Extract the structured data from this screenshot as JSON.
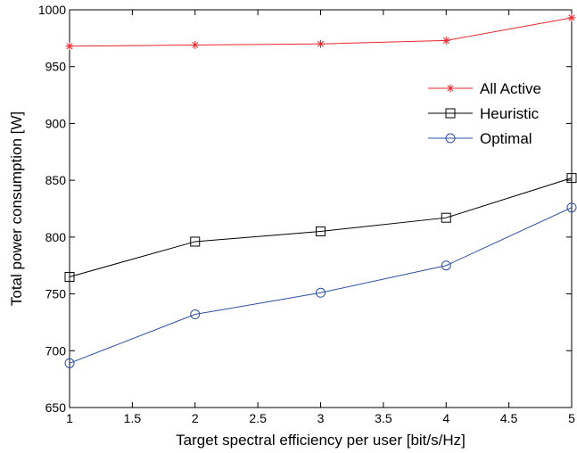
{
  "chart_data": {
    "type": "line",
    "xlabel": "Target spectral efficiency per user [bit/s/Hz]",
    "ylabel": "Total power consumption [W]",
    "xlim": [
      1,
      5
    ],
    "ylim": [
      650,
      1000
    ],
    "xticks": [
      1,
      1.5,
      2,
      2.5,
      3,
      3.5,
      4,
      4.5,
      5
    ],
    "xtick_labels": [
      "1",
      "1.5",
      "2",
      "2.5",
      "3",
      "3.5",
      "4",
      "4.5",
      "5"
    ],
    "yticks": [
      650,
      700,
      750,
      800,
      850,
      900,
      950,
      1000
    ],
    "ytick_labels": [
      "650",
      "700",
      "750",
      "800",
      "850",
      "900",
      "950",
      "1000"
    ],
    "grid": false,
    "legend_position": "top-right",
    "x": [
      1,
      2,
      3,
      4,
      5
    ],
    "series": [
      {
        "name": "All Active",
        "values": [
          968,
          969,
          970,
          973,
          993
        ],
        "color": "#e8262b",
        "marker": "star"
      },
      {
        "name": "Heuristic",
        "values": [
          765,
          796,
          805,
          817,
          852
        ],
        "color": "#000000",
        "marker": "square"
      },
      {
        "name": "Optimal",
        "values": [
          689,
          732,
          751,
          775,
          826
        ],
        "color": "#2b4fa3",
        "marker": "circle"
      }
    ]
  }
}
